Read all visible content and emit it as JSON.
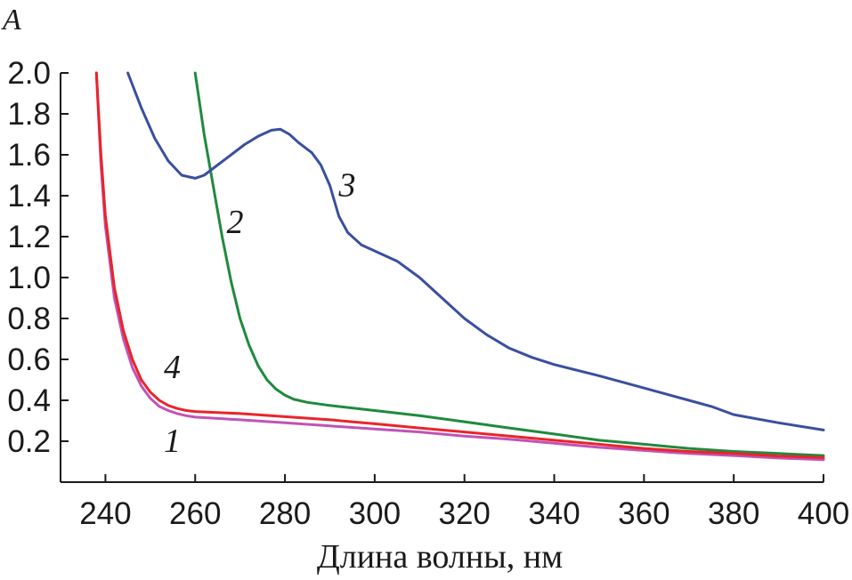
{
  "chart_data": {
    "type": "line",
    "title": "",
    "xlabel": "Длина волны, нм",
    "ylabel": "A",
    "xlim": [
      230,
      400
    ],
    "ylim": [
      0.0,
      2.0
    ],
    "x_ticks": [
      240,
      260,
      280,
      300,
      320,
      340,
      360,
      380,
      400
    ],
    "y_ticks": [
      "0.2",
      "0.4",
      "0.6",
      "0.8",
      "1.0",
      "1.2",
      "1.4",
      "1.6",
      "1.8",
      "2.0"
    ],
    "y_tick_values": [
      0.2,
      0.4,
      0.6,
      0.8,
      1.0,
      1.2,
      1.4,
      1.6,
      1.8,
      2.0
    ],
    "grid": false,
    "series": [
      {
        "name": "1",
        "color": "#c153b5",
        "label_at": [
          253,
          0.2
        ],
        "points": [
          [
            238,
            2.0
          ],
          [
            239,
            1.55
          ],
          [
            240,
            1.25
          ],
          [
            242,
            0.9
          ],
          [
            244,
            0.7
          ],
          [
            246,
            0.56
          ],
          [
            248,
            0.47
          ],
          [
            250,
            0.41
          ],
          [
            252,
            0.37
          ],
          [
            254,
            0.35
          ],
          [
            256,
            0.335
          ],
          [
            258,
            0.325
          ],
          [
            260,
            0.318
          ],
          [
            270,
            0.305
          ],
          [
            280,
            0.29
          ],
          [
            290,
            0.275
          ],
          [
            300,
            0.26
          ],
          [
            310,
            0.245
          ],
          [
            320,
            0.225
          ],
          [
            330,
            0.21
          ],
          [
            340,
            0.19
          ],
          [
            350,
            0.17
          ],
          [
            360,
            0.155
          ],
          [
            370,
            0.14
          ],
          [
            380,
            0.13
          ],
          [
            390,
            0.118
          ],
          [
            400,
            0.11
          ]
        ]
      },
      {
        "name": "2",
        "color": "#1f8a3e",
        "label_at": [
          267,
          1.27
        ],
        "points": [
          [
            260,
            2.0
          ],
          [
            261,
            1.85
          ],
          [
            262,
            1.7
          ],
          [
            264,
            1.45
          ],
          [
            266,
            1.2
          ],
          [
            268,
            0.98
          ],
          [
            270,
            0.8
          ],
          [
            272,
            0.67
          ],
          [
            274,
            0.57
          ],
          [
            276,
            0.5
          ],
          [
            278,
            0.455
          ],
          [
            280,
            0.425
          ],
          [
            282,
            0.405
          ],
          [
            285,
            0.39
          ],
          [
            290,
            0.375
          ],
          [
            300,
            0.35
          ],
          [
            310,
            0.325
          ],
          [
            320,
            0.295
          ],
          [
            330,
            0.265
          ],
          [
            340,
            0.235
          ],
          [
            350,
            0.205
          ],
          [
            360,
            0.185
          ],
          [
            370,
            0.165
          ],
          [
            380,
            0.15
          ],
          [
            390,
            0.14
          ],
          [
            400,
            0.13
          ]
        ]
      },
      {
        "name": "3",
        "color": "#3a4fa0",
        "label_at": [
          292,
          1.45
        ],
        "points": [
          [
            245,
            2.0
          ],
          [
            248,
            1.83
          ],
          [
            251,
            1.68
          ],
          [
            254,
            1.57
          ],
          [
            257,
            1.5
          ],
          [
            260,
            1.485
          ],
          [
            262,
            1.5
          ],
          [
            265,
            1.55
          ],
          [
            268,
            1.6
          ],
          [
            271,
            1.65
          ],
          [
            274,
            1.69
          ],
          [
            277,
            1.72
          ],
          [
            279,
            1.725
          ],
          [
            281,
            1.7
          ],
          [
            283,
            1.66
          ],
          [
            286,
            1.61
          ],
          [
            288,
            1.55
          ],
          [
            290,
            1.45
          ],
          [
            292,
            1.3
          ],
          [
            294,
            1.22
          ],
          [
            297,
            1.16
          ],
          [
            300,
            1.13
          ],
          [
            305,
            1.08
          ],
          [
            310,
            1.0
          ],
          [
            315,
            0.9
          ],
          [
            320,
            0.8
          ],
          [
            325,
            0.72
          ],
          [
            330,
            0.655
          ],
          [
            335,
            0.61
          ],
          [
            340,
            0.575
          ],
          [
            350,
            0.52
          ],
          [
            360,
            0.46
          ],
          [
            370,
            0.4
          ],
          [
            375,
            0.37
          ],
          [
            380,
            0.33
          ],
          [
            390,
            0.29
          ],
          [
            400,
            0.255
          ]
        ]
      },
      {
        "name": "4",
        "color": "#e8252a",
        "label_at": [
          253,
          0.56
        ],
        "points": [
          [
            238,
            2.0
          ],
          [
            239,
            1.6
          ],
          [
            240,
            1.3
          ],
          [
            242,
            0.95
          ],
          [
            244,
            0.74
          ],
          [
            246,
            0.6
          ],
          [
            248,
            0.5
          ],
          [
            250,
            0.44
          ],
          [
            252,
            0.4
          ],
          [
            254,
            0.375
          ],
          [
            256,
            0.36
          ],
          [
            258,
            0.35
          ],
          [
            260,
            0.345
          ],
          [
            270,
            0.335
          ],
          [
            280,
            0.32
          ],
          [
            290,
            0.305
          ],
          [
            300,
            0.285
          ],
          [
            310,
            0.265
          ],
          [
            320,
            0.245
          ],
          [
            330,
            0.225
          ],
          [
            340,
            0.205
          ],
          [
            350,
            0.185
          ],
          [
            360,
            0.165
          ],
          [
            370,
            0.15
          ],
          [
            380,
            0.14
          ],
          [
            390,
            0.128
          ],
          [
            400,
            0.12
          ]
        ]
      }
    ]
  }
}
